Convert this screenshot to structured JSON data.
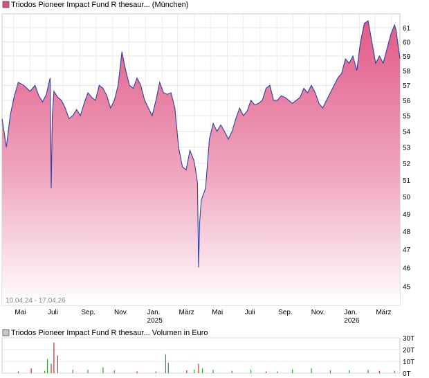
{
  "chart_data": [
    {
      "type": "area",
      "legend": "Triodos Pioneer Impact Fund R thesaur... (München)",
      "date_range": "10.04.24 - 17.04.26",
      "x_month_labels": [
        "Mai",
        "Juli",
        "Sep.",
        "Nov.",
        "Jan.",
        "März",
        "Mai",
        "Juli",
        "Sep.",
        "Nov.",
        "Jan.",
        "März"
      ],
      "x_year_labels": [
        "2025",
        "2026"
      ],
      "y_ticks": [
        45,
        46,
        47,
        48,
        49,
        50,
        51,
        52,
        53,
        54,
        55,
        56,
        57,
        58,
        59,
        60,
        61
      ],
      "ylim": [
        44,
        62
      ],
      "log_scale": true,
      "grid": true,
      "line_color": "#2a3f9e",
      "fill_color_top": "#e06088",
      "fill_color_bottom": "#ffffff",
      "series": [
        {
          "x": [
            "2024-04-10",
            "2024-04-18",
            "2024-04-25",
            "2024-05-02",
            "2024-05-10",
            "2024-05-20",
            "2024-06-01",
            "2024-06-10",
            "2024-06-17",
            "2024-06-24",
            "2024-07-01",
            "2024-07-08",
            "2024-07-10",
            "2024-07-12",
            "2024-07-15",
            "2024-07-22",
            "2024-07-29",
            "2024-08-05",
            "2024-08-12",
            "2024-08-19",
            "2024-08-26",
            "2024-09-02",
            "2024-09-09",
            "2024-09-16",
            "2024-09-23",
            "2024-09-30",
            "2024-10-07",
            "2024-10-14",
            "2024-10-21",
            "2024-10-28",
            "2024-11-04",
            "2024-11-11",
            "2024-11-18",
            "2024-11-25",
            "2024-12-02",
            "2024-12-09",
            "2024-12-16",
            "2024-12-23",
            "2024-12-30",
            "2025-01-06",
            "2025-01-13",
            "2025-01-20",
            "2025-01-27",
            "2025-02-03",
            "2025-02-10",
            "2025-02-17",
            "2025-02-24",
            "2025-03-03",
            "2025-03-10",
            "2025-03-17",
            "2025-03-24",
            "2025-03-31",
            "2025-04-03",
            "2025-04-07",
            "2025-04-09",
            "2025-04-11",
            "2025-04-14",
            "2025-04-22",
            "2025-04-29",
            "2025-05-06",
            "2025-05-13",
            "2025-05-20",
            "2025-05-27",
            "2025-06-03",
            "2025-06-10",
            "2025-06-17",
            "2025-06-24",
            "2025-07-01",
            "2025-07-08",
            "2025-07-15",
            "2025-07-22",
            "2025-07-29",
            "2025-08-05",
            "2025-08-12",
            "2025-08-19",
            "2025-08-26",
            "2025-09-02",
            "2025-09-09",
            "2025-09-16",
            "2025-09-23",
            "2025-09-30",
            "2025-10-07",
            "2025-10-14",
            "2025-10-21",
            "2025-10-28",
            "2025-11-04",
            "2025-11-11",
            "2025-11-18",
            "2025-11-25",
            "2025-12-02",
            "2025-12-09",
            "2025-12-16",
            "2025-12-23",
            "2025-12-30",
            "2026-01-06",
            "2026-01-13",
            "2026-01-20",
            "2026-01-27",
            "2026-02-03",
            "2026-02-10",
            "2026-02-17",
            "2026-02-24",
            "2026-03-03",
            "2026-03-10",
            "2026-03-17",
            "2026-03-24",
            "2026-03-31",
            "2026-04-07",
            "2026-04-10",
            "2026-04-17"
          ],
          "y": [
            54.8,
            53.0,
            55.0,
            56.2,
            57.2,
            57.0,
            56.6,
            57.0,
            56.3,
            55.9,
            56.4,
            57.5,
            50.5,
            55.0,
            56.6,
            56.2,
            56.0,
            55.5,
            54.8,
            55.0,
            55.4,
            55.0,
            55.8,
            56.5,
            56.2,
            56.0,
            57.0,
            56.8,
            56.3,
            55.5,
            56.0,
            57.0,
            59.3,
            58.0,
            57.0,
            56.8,
            57.5,
            57.0,
            56.0,
            55.5,
            55.0,
            56.0,
            57.2,
            56.5,
            56.4,
            56.5,
            55.5,
            53.0,
            51.8,
            51.6,
            52.8,
            52.2,
            51.7,
            50.8,
            46.0,
            48.5,
            49.8,
            50.5,
            53.5,
            54.5,
            54.0,
            54.4,
            54.0,
            53.5,
            54.0,
            54.8,
            55.5,
            55.0,
            55.3,
            56.0,
            55.7,
            55.8,
            56.0,
            56.8,
            57.0,
            56.0,
            56.0,
            56.3,
            56.2,
            56.0,
            55.8,
            56.0,
            56.2,
            56.8,
            56.5,
            57.0,
            56.5,
            55.8,
            55.5,
            56.0,
            56.5,
            57.0,
            57.5,
            57.8,
            58.8,
            58.5,
            59.0,
            58.0,
            60.0,
            61.3,
            61.5,
            60.0,
            58.5,
            59.0,
            58.5,
            59.5,
            60.5,
            61.2,
            60.8,
            58.8
          ]
        }
      ]
    },
    {
      "type": "bar",
      "legend": "Triodos Pioneer Impact Fund R thesaur... Volumen in Euro",
      "y_ticks": [
        "30T",
        "20T",
        "10T",
        "0T"
      ],
      "ylim": [
        0,
        30000
      ],
      "up_color": "#2ca02c",
      "down_color": "#d62728",
      "bars": [
        {
          "x": "2024-05-10",
          "v": 1500,
          "up": true
        },
        {
          "x": "2024-06-03",
          "v": 4000,
          "up": false
        },
        {
          "x": "2024-06-28",
          "v": 2000,
          "up": true
        },
        {
          "x": "2024-07-03",
          "v": 12000,
          "up": true
        },
        {
          "x": "2024-07-10",
          "v": 8000,
          "up": false
        },
        {
          "x": "2024-07-15",
          "v": 26000,
          "up": false
        },
        {
          "x": "2024-07-22",
          "v": 15000,
          "up": false
        },
        {
          "x": "2024-08-19",
          "v": 3000,
          "up": true
        },
        {
          "x": "2024-09-16",
          "v": 3000,
          "up": true
        },
        {
          "x": "2024-10-14",
          "v": 5000,
          "up": true
        },
        {
          "x": "2024-11-04",
          "v": 2500,
          "up": true
        },
        {
          "x": "2024-12-16",
          "v": 1500,
          "up": false
        },
        {
          "x": "2025-01-20",
          "v": 1500,
          "up": true
        },
        {
          "x": "2025-02-07",
          "v": 16000,
          "up": true
        },
        {
          "x": "2025-02-12",
          "v": 9000,
          "up": true
        },
        {
          "x": "2025-03-18",
          "v": 2500,
          "up": false
        },
        {
          "x": "2025-04-01",
          "v": 3000,
          "up": true
        },
        {
          "x": "2025-04-09",
          "v": 8000,
          "up": false
        },
        {
          "x": "2025-04-16",
          "v": 4000,
          "up": true
        },
        {
          "x": "2025-05-06",
          "v": 3000,
          "up": true
        },
        {
          "x": "2025-06-10",
          "v": 2000,
          "up": true
        },
        {
          "x": "2025-07-15",
          "v": 3000,
          "up": true
        },
        {
          "x": "2025-08-12",
          "v": 1500,
          "up": false
        },
        {
          "x": "2025-09-02",
          "v": 1500,
          "up": true
        },
        {
          "x": "2025-09-30",
          "v": 3000,
          "up": true
        },
        {
          "x": "2025-11-04",
          "v": 4000,
          "up": true
        },
        {
          "x": "2025-12-09",
          "v": 2500,
          "up": true
        },
        {
          "x": "2026-01-13",
          "v": 2500,
          "up": true
        },
        {
          "x": "2026-02-17",
          "v": 3000,
          "up": true
        },
        {
          "x": "2026-03-10",
          "v": 2000,
          "up": false
        },
        {
          "x": "2026-04-07",
          "v": 2000,
          "up": true
        }
      ]
    }
  ]
}
